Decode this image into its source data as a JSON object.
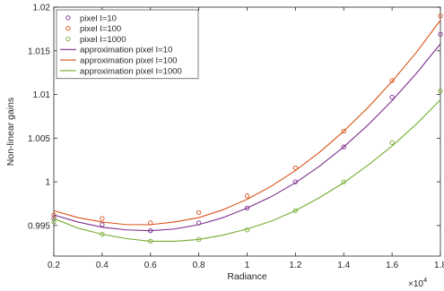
{
  "chart_data": {
    "type": "scatter",
    "xlabel": "Radiance",
    "ylabel": "Non-linear gains",
    "x_exponent_label": "×10",
    "x_exponent_power": "4",
    "x_scale_factor": 10000,
    "xlim": [
      2000,
      18000
    ],
    "ylim": [
      0.9915,
      1.02
    ],
    "x_ticks": [
      2000,
      4000,
      6000,
      8000,
      10000,
      12000,
      14000,
      16000,
      18000
    ],
    "x_tick_labels": [
      "0.2",
      "0.4",
      "0.6",
      "0.8",
      "1",
      "1.2",
      "1.4",
      "1.6",
      "1.8"
    ],
    "y_ticks": [
      0.995,
      1.0,
      1.005,
      1.01,
      1.015,
      1.02
    ],
    "y_tick_labels": [
      "0.995",
      "1",
      "1.005",
      "1.01",
      "1.015",
      "1.02"
    ],
    "grid": false,
    "legend_position": "top-left",
    "series": [
      {
        "name": "pixel I=10",
        "kind": "markers",
        "color": "#7e2f8e",
        "x": [
          2000,
          4000,
          6000,
          8000,
          10000,
          12000,
          14000,
          16000,
          18000
        ],
        "y": [
          0.9958,
          0.9951,
          0.9944,
          0.9953,
          0.997,
          1.0,
          1.004,
          1.0097,
          1.0169
        ]
      },
      {
        "name": "pixel I=100",
        "kind": "markers",
        "color": "#d95319",
        "x": [
          2000,
          4000,
          6000,
          8000,
          10000,
          12000,
          14000,
          16000,
          18000
        ],
        "y": [
          0.9962,
          0.9958,
          0.9953,
          0.9965,
          0.9984,
          1.0016,
          1.0058,
          1.0116,
          1.019
        ]
      },
      {
        "name": "pixel I=1000",
        "kind": "markers",
        "color": "#77ac30",
        "x": [
          2000,
          4000,
          6000,
          8000,
          10000,
          12000,
          14000,
          16000,
          18000
        ],
        "y": [
          0.9954,
          0.994,
          0.9932,
          0.9934,
          0.9945,
          0.9967,
          1.0,
          1.0045,
          1.0104
        ]
      },
      {
        "name": "approximation pixel I=10",
        "kind": "line",
        "color": "#7e2f8e",
        "x": [
          2000,
          3000,
          4000,
          5000,
          6000,
          7000,
          8000,
          9000,
          10000,
          11000,
          12000,
          13000,
          14000,
          15000,
          16000,
          17000,
          18000
        ],
        "y": [
          0.9962,
          0.9954,
          0.9948,
          0.9945,
          0.9944,
          0.9946,
          0.9951,
          0.9959,
          0.997,
          0.9983,
          0.9999,
          1.0018,
          1.004,
          1.0065,
          1.0093,
          1.0124,
          1.0158
        ]
      },
      {
        "name": "approximation pixel I=100",
        "kind": "line",
        "color": "#d95319",
        "x": [
          2000,
          3000,
          4000,
          5000,
          6000,
          7000,
          8000,
          9000,
          10000,
          11000,
          12000,
          13000,
          14000,
          15000,
          16000,
          17000,
          18000
        ],
        "y": [
          0.9967,
          0.9959,
          0.9954,
          0.9951,
          0.9951,
          0.9954,
          0.9959,
          0.9968,
          0.998,
          0.9995,
          1.0013,
          1.0034,
          1.0058,
          1.0085,
          1.0115,
          1.0148,
          1.0185
        ]
      },
      {
        "name": "approximation pixel I=1000",
        "kind": "line",
        "color": "#77ac30",
        "x": [
          2000,
          3000,
          4000,
          5000,
          6000,
          7000,
          8000,
          9000,
          10000,
          11000,
          12000,
          13000,
          14000,
          15000,
          16000,
          17000,
          18000
        ],
        "y": [
          0.9958,
          0.9947,
          0.994,
          0.9935,
          0.9932,
          0.9932,
          0.9934,
          0.9939,
          0.9946,
          0.9955,
          0.9967,
          0.9982,
          0.9999,
          1.0019,
          1.0041,
          1.0066,
          1.0094
        ]
      }
    ]
  }
}
